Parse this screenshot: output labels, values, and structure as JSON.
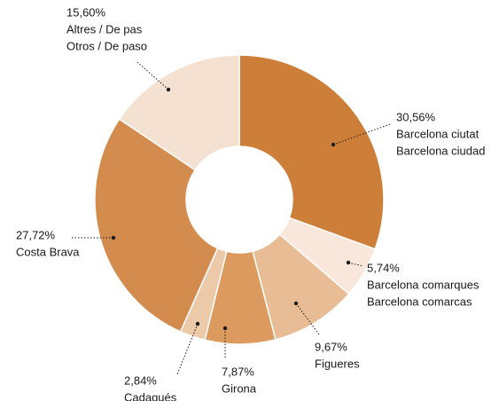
{
  "chart_data": {
    "type": "donut",
    "categories": [
      [
        "Barcelona ciutat",
        "Barcelona ciudad"
      ],
      [
        "Barcelona comarques",
        "Barcelona comarcas"
      ],
      [
        "Figueres"
      ],
      [
        "Girona"
      ],
      [
        "Cadaqués"
      ],
      [
        "Costa Brava"
      ],
      [
        "Altres / De pas",
        "Otros / De paso"
      ]
    ],
    "values": [
      30.56,
      5.74,
      9.67,
      7.87,
      2.84,
      27.72,
      15.6
    ],
    "value_labels": [
      "30,56%",
      "5,74%",
      "9,67%",
      "7,87%",
      "2,84%",
      "27,72%",
      "15,60%"
    ],
    "colors": [
      "#cd7f3a",
      "#f8e7da",
      "#e8bd96",
      "#dc9a5e",
      "#ecc9a8",
      "#d48b4e",
      "#f5e1d1"
    ]
  }
}
